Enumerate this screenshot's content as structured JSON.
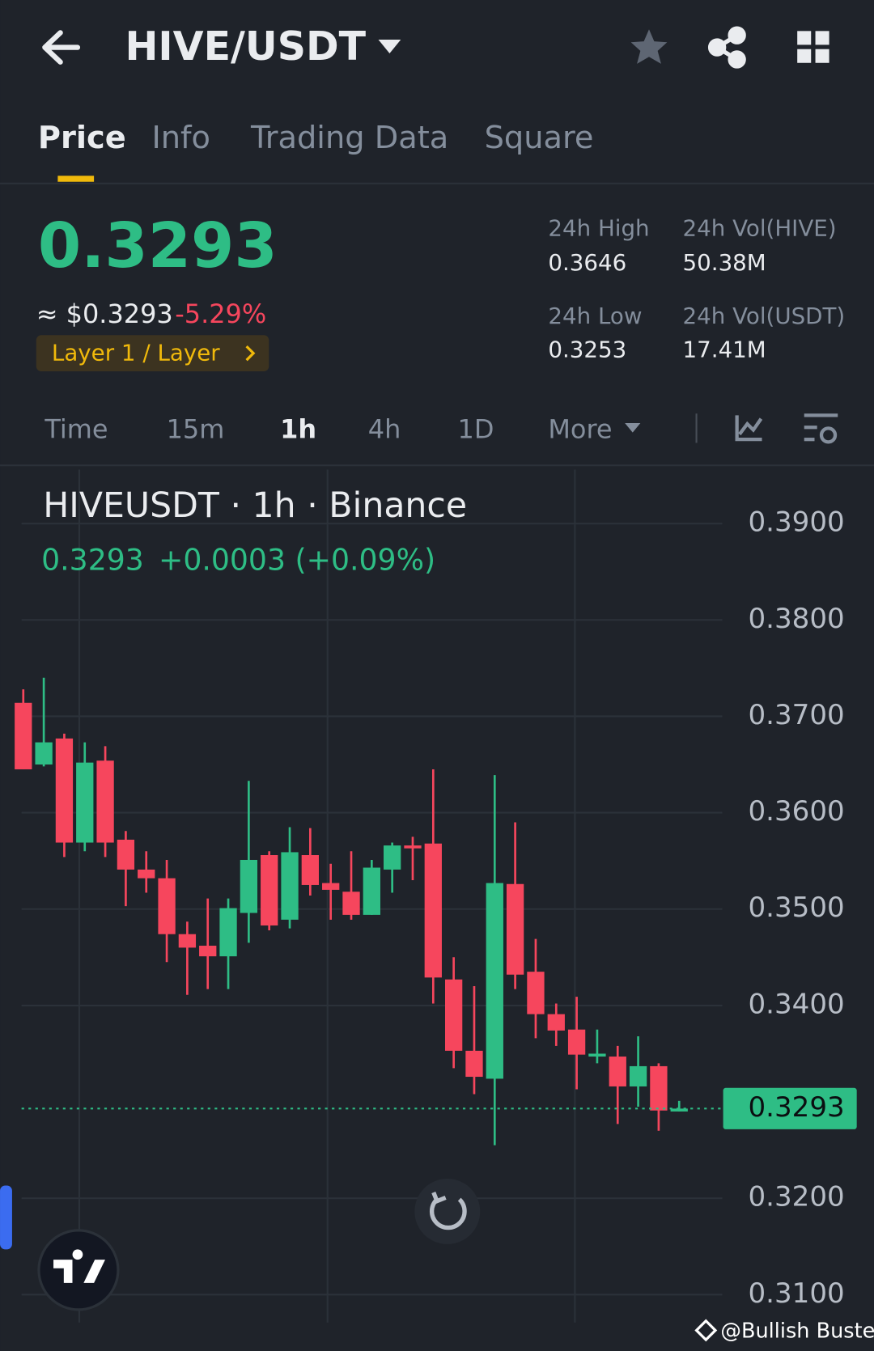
{
  "header": {
    "pair": "HIVE/USDT"
  },
  "tabs": [
    "Price",
    "Info",
    "Trading Data",
    "Square"
  ],
  "stats": {
    "price": "0.3293",
    "usd_price": "≈ $0.3293",
    "change": "-5.29%",
    "tag": "Layer 1 / Layer",
    "items": [
      {
        "label": "24h High",
        "value": "0.3646"
      },
      {
        "label": "24h Vol(HIVE)",
        "value": "50.38M"
      },
      {
        "label": "24h Low",
        "value": "0.3253"
      },
      {
        "label": "24h Vol(USDT)",
        "value": "17.41M"
      }
    ]
  },
  "timeframes": [
    "Time",
    "15m",
    "1h",
    "4h",
    "1D",
    "More"
  ],
  "chart_data": {
    "type": "candlestick",
    "title": "HIVEUSDT · 1h · Binance",
    "legend_price": "0.3293",
    "legend_change": "+0.0003 (+0.09%)",
    "up_color": "#2ebd85",
    "down_color": "#f6465d",
    "series": {
      "open": [
        0.3714,
        0.365,
        0.3677,
        0.3569,
        0.3654,
        0.3572,
        0.3541,
        0.3532,
        0.3474,
        0.3462,
        0.3451,
        0.3496,
        0.3556,
        0.3489,
        0.3556,
        0.3527,
        0.3518,
        0.3494,
        0.3541,
        0.3566,
        0.3568,
        0.3427,
        0.3353,
        0.3324,
        0.3526,
        0.3435,
        0.3391,
        0.3375,
        0.3347,
        0.3347,
        0.3316,
        0.3337,
        0.329
      ],
      "high": [
        0.3728,
        0.374,
        0.3682,
        0.3673,
        0.3669,
        0.3581,
        0.356,
        0.3551,
        0.3487,
        0.3511,
        0.3511,
        0.3633,
        0.356,
        0.3585,
        0.3584,
        0.3547,
        0.356,
        0.3551,
        0.3569,
        0.3575,
        0.3645,
        0.345,
        0.342,
        0.3639,
        0.359,
        0.3469,
        0.3402,
        0.3409,
        0.3375,
        0.3358,
        0.3368,
        0.334,
        0.3301
      ],
      "low": [
        0.3645,
        0.3648,
        0.3554,
        0.356,
        0.3554,
        0.3503,
        0.3517,
        0.3445,
        0.3411,
        0.3417,
        0.3417,
        0.3465,
        0.3478,
        0.348,
        0.3514,
        0.3489,
        0.3489,
        0.3494,
        0.3517,
        0.353,
        0.3402,
        0.3335,
        0.3308,
        0.3255,
        0.3417,
        0.3366,
        0.3358,
        0.3313,
        0.334,
        0.3277,
        0.3295,
        0.327,
        0.329
      ],
      "close": [
        0.3645,
        0.3673,
        0.3569,
        0.3652,
        0.3569,
        0.3541,
        0.3532,
        0.3474,
        0.346,
        0.3451,
        0.3501,
        0.3551,
        0.3483,
        0.3559,
        0.3525,
        0.352,
        0.3494,
        0.3543,
        0.3566,
        0.3563,
        0.3429,
        0.3353,
        0.3326,
        0.3527,
        0.3432,
        0.3391,
        0.3374,
        0.3349,
        0.335,
        0.3316,
        0.3337,
        0.3291,
        0.3293
      ]
    },
    "ylim": [
      0.3071,
      0.3956
    ],
    "yticks": [
      {
        "value": 0.39,
        "label": "0.3900"
      },
      {
        "value": 0.38,
        "label": "0.3800"
      },
      {
        "value": 0.37,
        "label": "0.3700"
      },
      {
        "value": 0.36,
        "label": "0.3600"
      },
      {
        "value": 0.35,
        "label": "0.3500"
      },
      {
        "value": 0.34,
        "label": "0.3400"
      },
      {
        "value": 0.32,
        "label": "0.3200"
      },
      {
        "value": 0.31,
        "label": "0.3100"
      }
    ],
    "last_price": {
      "value": 0.3293,
      "label": "0.3293"
    },
    "grid": true
  },
  "watermark": "@Bullish Buster"
}
